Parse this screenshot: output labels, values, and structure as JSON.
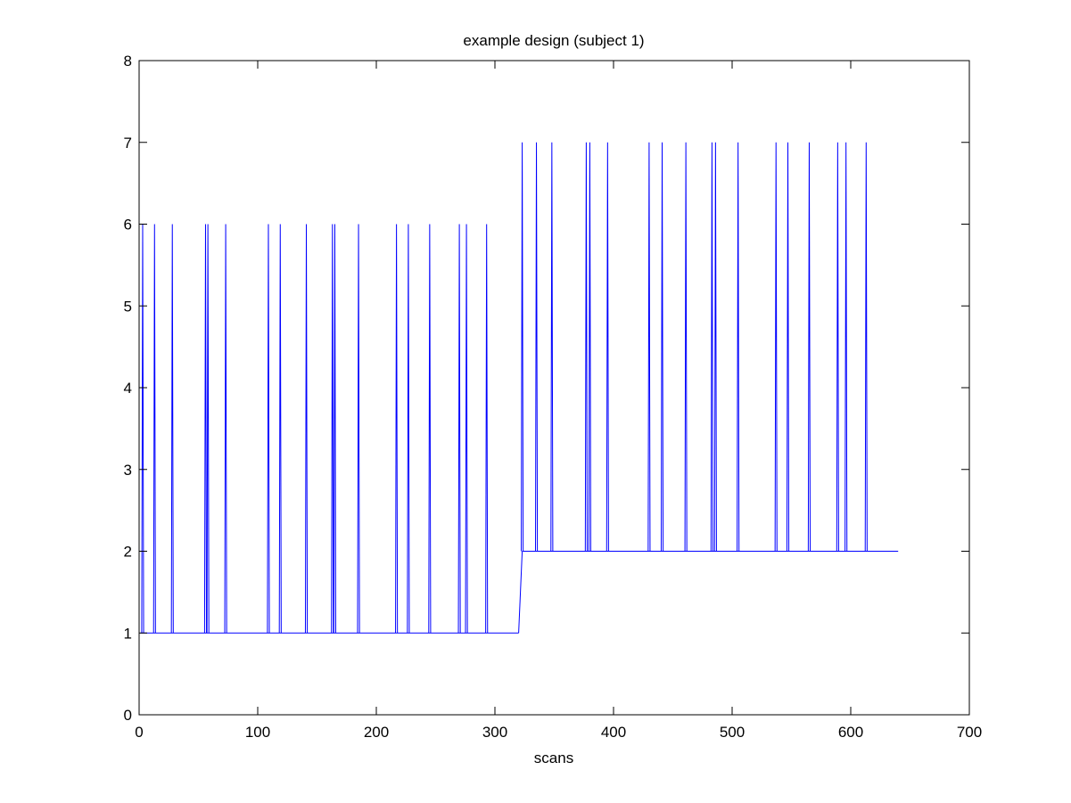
{
  "chart_data": {
    "type": "line",
    "title": "example design (subject 1)",
    "xlabel": "scans",
    "ylabel": "",
    "xlim": [
      0,
      700
    ],
    "ylim": [
      0,
      8
    ],
    "xticks": [
      0,
      100,
      200,
      300,
      400,
      500,
      600,
      700
    ],
    "yticks": [
      0,
      1,
      2,
      3,
      4,
      5,
      6,
      7,
      8
    ],
    "grid": false,
    "legend": "none",
    "line_color": "#0000ff",
    "series": [
      {
        "baseline_segments": [
          {
            "x_start": 1,
            "x_end": 320,
            "y": 1
          },
          {
            "x_start": 323,
            "x_end": 640,
            "y": 2
          }
        ],
        "step": {
          "x_start": 320,
          "x_end": 323,
          "y_from": 1,
          "y_to": 2
        },
        "peaks": [
          {
            "x": 3,
            "y": 6
          },
          {
            "x": 13,
            "y": 6
          },
          {
            "x": 28,
            "y": 6
          },
          {
            "x": 56,
            "y": 6
          },
          {
            "x": 58,
            "y": 6
          },
          {
            "x": 73,
            "y": 6
          },
          {
            "x": 109,
            "y": 6
          },
          {
            "x": 119,
            "y": 6
          },
          {
            "x": 141,
            "y": 6
          },
          {
            "x": 163,
            "y": 6
          },
          {
            "x": 165,
            "y": 6
          },
          {
            "x": 185,
            "y": 6
          },
          {
            "x": 217,
            "y": 6
          },
          {
            "x": 227,
            "y": 6
          },
          {
            "x": 245,
            "y": 6
          },
          {
            "x": 270,
            "y": 6
          },
          {
            "x": 276,
            "y": 6
          },
          {
            "x": 293,
            "y": 6
          },
          {
            "x": 323,
            "y": 7
          },
          {
            "x": 335,
            "y": 7
          },
          {
            "x": 348,
            "y": 7
          },
          {
            "x": 377,
            "y": 7
          },
          {
            "x": 380,
            "y": 7
          },
          {
            "x": 395,
            "y": 7
          },
          {
            "x": 430,
            "y": 7
          },
          {
            "x": 441,
            "y": 7
          },
          {
            "x": 461,
            "y": 7
          },
          {
            "x": 483,
            "y": 7
          },
          {
            "x": 486,
            "y": 7
          },
          {
            "x": 505,
            "y": 7
          },
          {
            "x": 537,
            "y": 7
          },
          {
            "x": 547,
            "y": 7
          },
          {
            "x": 565,
            "y": 7
          },
          {
            "x": 589,
            "y": 7
          },
          {
            "x": 596,
            "y": 7
          },
          {
            "x": 613,
            "y": 7
          }
        ]
      }
    ]
  }
}
